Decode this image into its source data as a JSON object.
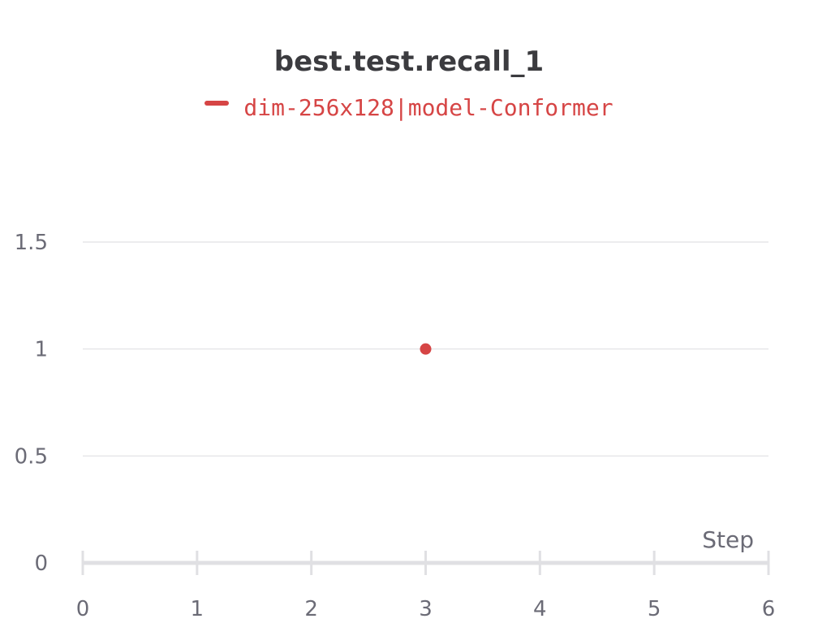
{
  "chart_data": {
    "type": "scatter",
    "title": "best.test.recall_1",
    "xlabel": "Step",
    "ylabel": "",
    "xlim": [
      0,
      6
    ],
    "ylim": [
      0,
      1.5
    ],
    "x_ticks": [
      "0",
      "1",
      "2",
      "3",
      "4",
      "5",
      "6"
    ],
    "y_ticks": [
      "0",
      "0.5",
      "1",
      "1.5"
    ],
    "grid": true,
    "legend_position": "top-center",
    "series": [
      {
        "name": "dim-256x128|model-Conformer",
        "color": "#d64545",
        "points": [
          {
            "x": 3,
            "y": 1
          }
        ]
      }
    ]
  },
  "colors": {
    "grid": "#e6e6e9",
    "axis": "#e0e0e3",
    "tick_text": "#6b6b76",
    "title_text": "#3b3b3f"
  }
}
